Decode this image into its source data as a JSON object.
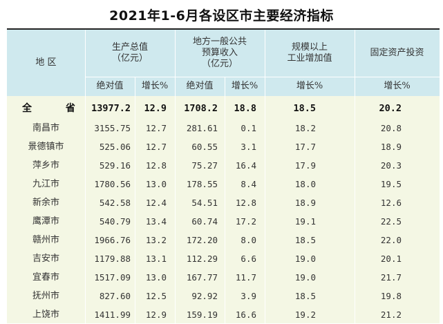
{
  "title": "2021年1-6月各设区市主要经济指标",
  "header": {
    "region": "地 区",
    "gdp": "生产总值\n（亿元）",
    "budget": "地方一般公共\n预算收入\n（亿元）",
    "industry": "规模以上\n工业增加值",
    "investment": "固定资产投资",
    "absolute": "绝对值",
    "growth": "增长%"
  },
  "rows": [
    {
      "region": "全 省",
      "gdp": "13977.2",
      "gdp_growth": "12.9",
      "budget": "1708.2",
      "budget_growth": "18.8",
      "industry_growth": "18.5",
      "investment_growth": "20.2"
    },
    {
      "region": "南昌市",
      "gdp": "3155.75",
      "gdp_growth": "12.7",
      "budget": "281.61",
      "budget_growth": "0.1",
      "industry_growth": "18.2",
      "investment_growth": "20.8"
    },
    {
      "region": "景德镇市",
      "gdp": "525.06",
      "gdp_growth": "12.7",
      "budget": "60.55",
      "budget_growth": "3.1",
      "industry_growth": "17.7",
      "investment_growth": "18.9"
    },
    {
      "region": "萍乡市",
      "gdp": "529.16",
      "gdp_growth": "12.8",
      "budget": "75.27",
      "budget_growth": "16.4",
      "industry_growth": "17.9",
      "investment_growth": "20.3"
    },
    {
      "region": "九江市",
      "gdp": "1780.56",
      "gdp_growth": "13.0",
      "budget": "178.55",
      "budget_growth": "8.4",
      "industry_growth": "18.0",
      "investment_growth": "19.5"
    },
    {
      "region": "新余市",
      "gdp": "542.58",
      "gdp_growth": "12.4",
      "budget": "54.51",
      "budget_growth": "12.8",
      "industry_growth": "18.9",
      "investment_growth": "12.6"
    },
    {
      "region": "鹰潭市",
      "gdp": "540.79",
      "gdp_growth": "13.4",
      "budget": "60.74",
      "budget_growth": "17.2",
      "industry_growth": "19.1",
      "investment_growth": "22.5"
    },
    {
      "region": "赣州市",
      "gdp": "1966.76",
      "gdp_growth": "13.2",
      "budget": "172.20",
      "budget_growth": "8.0",
      "industry_growth": "18.5",
      "investment_growth": "22.0"
    },
    {
      "region": "吉安市",
      "gdp": "1179.88",
      "gdp_growth": "13.1",
      "budget": "112.29",
      "budget_growth": "6.6",
      "industry_growth": "19.0",
      "investment_growth": "20.1"
    },
    {
      "region": "宜春市",
      "gdp": "1517.09",
      "gdp_growth": "13.0",
      "budget": "167.77",
      "budget_growth": "11.7",
      "industry_growth": "19.0",
      "investment_growth": "21.7"
    },
    {
      "region": "抚州市",
      "gdp": "827.60",
      "gdp_growth": "12.5",
      "budget": "92.92",
      "budget_growth": "3.9",
      "industry_growth": "18.5",
      "investment_growth": "19.8"
    },
    {
      "region": "上饶市",
      "gdp": "1411.99",
      "gdp_growth": "12.9",
      "budget": "159.19",
      "budget_growth": "16.6",
      "industry_growth": "19.2",
      "investment_growth": "21.2"
    }
  ]
}
